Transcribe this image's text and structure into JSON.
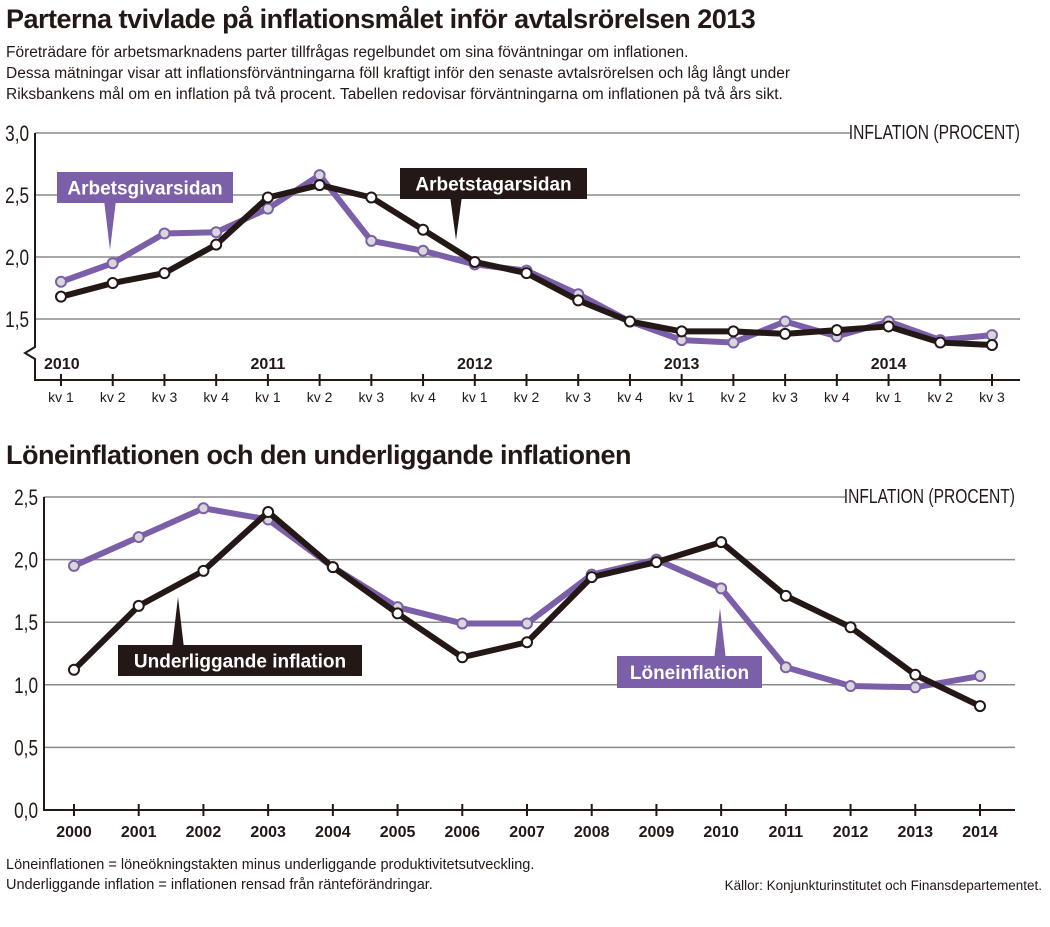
{
  "header": {
    "title": "Parterna tvivlade på inflationsmålet inför avtalsrörelsen 2013",
    "subtitle_lines": [
      "Företrädare för arbetsmarknadens parter tillfrågas regelbundet om sina föväntningar om inflationen.",
      "Dessa mätningar visar att inflationsförväntningarna föll kraftigt inför den senaste avtalsrörelsen och låg långt under",
      "Riksbankens mål om en inflation på två procent. Tabellen redovisar förväntningarna om inflationen på två års sikt."
    ]
  },
  "colors": {
    "purple": "#7b5fa9",
    "black": "#231815",
    "grid": "#8a8a8a"
  },
  "chart_data": [
    {
      "type": "line",
      "title": "",
      "ylabel": "INFLATION (PROCENT)",
      "ylim": [
        1.5,
        3.0
      ],
      "axis_break": true,
      "yticks": [
        "1,5",
        "2,0",
        "2,5",
        "3,0"
      ],
      "ytick_values": [
        1.5,
        2.0,
        2.5,
        3.0
      ],
      "grid": true,
      "categories": [
        "kv 1",
        "kv 2",
        "kv 3",
        "kv 4",
        "kv 1",
        "kv 2",
        "kv 3",
        "kv 4",
        "kv 1",
        "kv 2",
        "kv 3",
        "kv 4",
        "kv 1",
        "kv 2",
        "kv 3",
        "kv 4",
        "kv 1",
        "kv 2",
        "kv 3"
      ],
      "years": [
        {
          "label": "2010",
          "index": 0
        },
        {
          "label": "2011",
          "index": 4
        },
        {
          "label": "2012",
          "index": 8
        },
        {
          "label": "2013",
          "index": 12
        },
        {
          "label": "2014",
          "index": 16
        }
      ],
      "series": [
        {
          "name": "Arbetsgivarsidan",
          "color": "#7b5fa9",
          "values": [
            1.8,
            1.95,
            2.19,
            2.2,
            2.39,
            2.66,
            2.13,
            2.05,
            1.94,
            1.89,
            1.7,
            1.48,
            1.33,
            1.31,
            1.48,
            1.36,
            1.48,
            1.33,
            1.37
          ]
        },
        {
          "name": "Arbetstagarsidan",
          "color": "#231815",
          "values": [
            1.68,
            1.79,
            1.87,
            2.1,
            2.48,
            2.58,
            2.48,
            2.22,
            1.96,
            1.87,
            1.65,
            1.48,
            1.4,
            1.4,
            1.38,
            1.41,
            1.44,
            1.31,
            1.29
          ]
        }
      ]
    },
    {
      "type": "line",
      "title": "Löneinflationen och den underliggande inflationen",
      "ylabel": "INFLATION (PROCENT)",
      "ylim": [
        0.0,
        2.5
      ],
      "yticks": [
        "0,0",
        "0,5",
        "1,0",
        "1,5",
        "2,0",
        "2,5"
      ],
      "ytick_values": [
        0,
        0.5,
        1.0,
        1.5,
        2.0,
        2.5
      ],
      "grid": true,
      "categories": [
        "2000",
        "2001",
        "2002",
        "2003",
        "2004",
        "2005",
        "2006",
        "2007",
        "2008",
        "2009",
        "2010",
        "2011",
        "2012",
        "2013",
        "2014"
      ],
      "series": [
        {
          "name": "Löneinflation",
          "color": "#7b5fa9",
          "values": [
            1.95,
            2.18,
            2.41,
            2.32,
            1.94,
            1.62,
            1.49,
            1.49,
            1.88,
            2.0,
            1.77,
            1.14,
            0.99,
            0.98,
            1.07
          ]
        },
        {
          "name": "Underliggande inflation",
          "color": "#231815",
          "values": [
            1.12,
            1.63,
            1.91,
            2.38,
            1.94,
            1.57,
            1.22,
            1.34,
            1.86,
            1.98,
            2.14,
            1.71,
            1.46,
            1.08,
            0.83
          ]
        }
      ]
    }
  ],
  "footer": {
    "notes": [
      "Löneinflationen = löneökningstakten minus underliggande produktivitetsutveckling.",
      "Underliggande inflation = inflationen rensad från ränteförändringar."
    ],
    "source": "Källor: Konjunkturinstitutet och Finansdepartementet."
  }
}
